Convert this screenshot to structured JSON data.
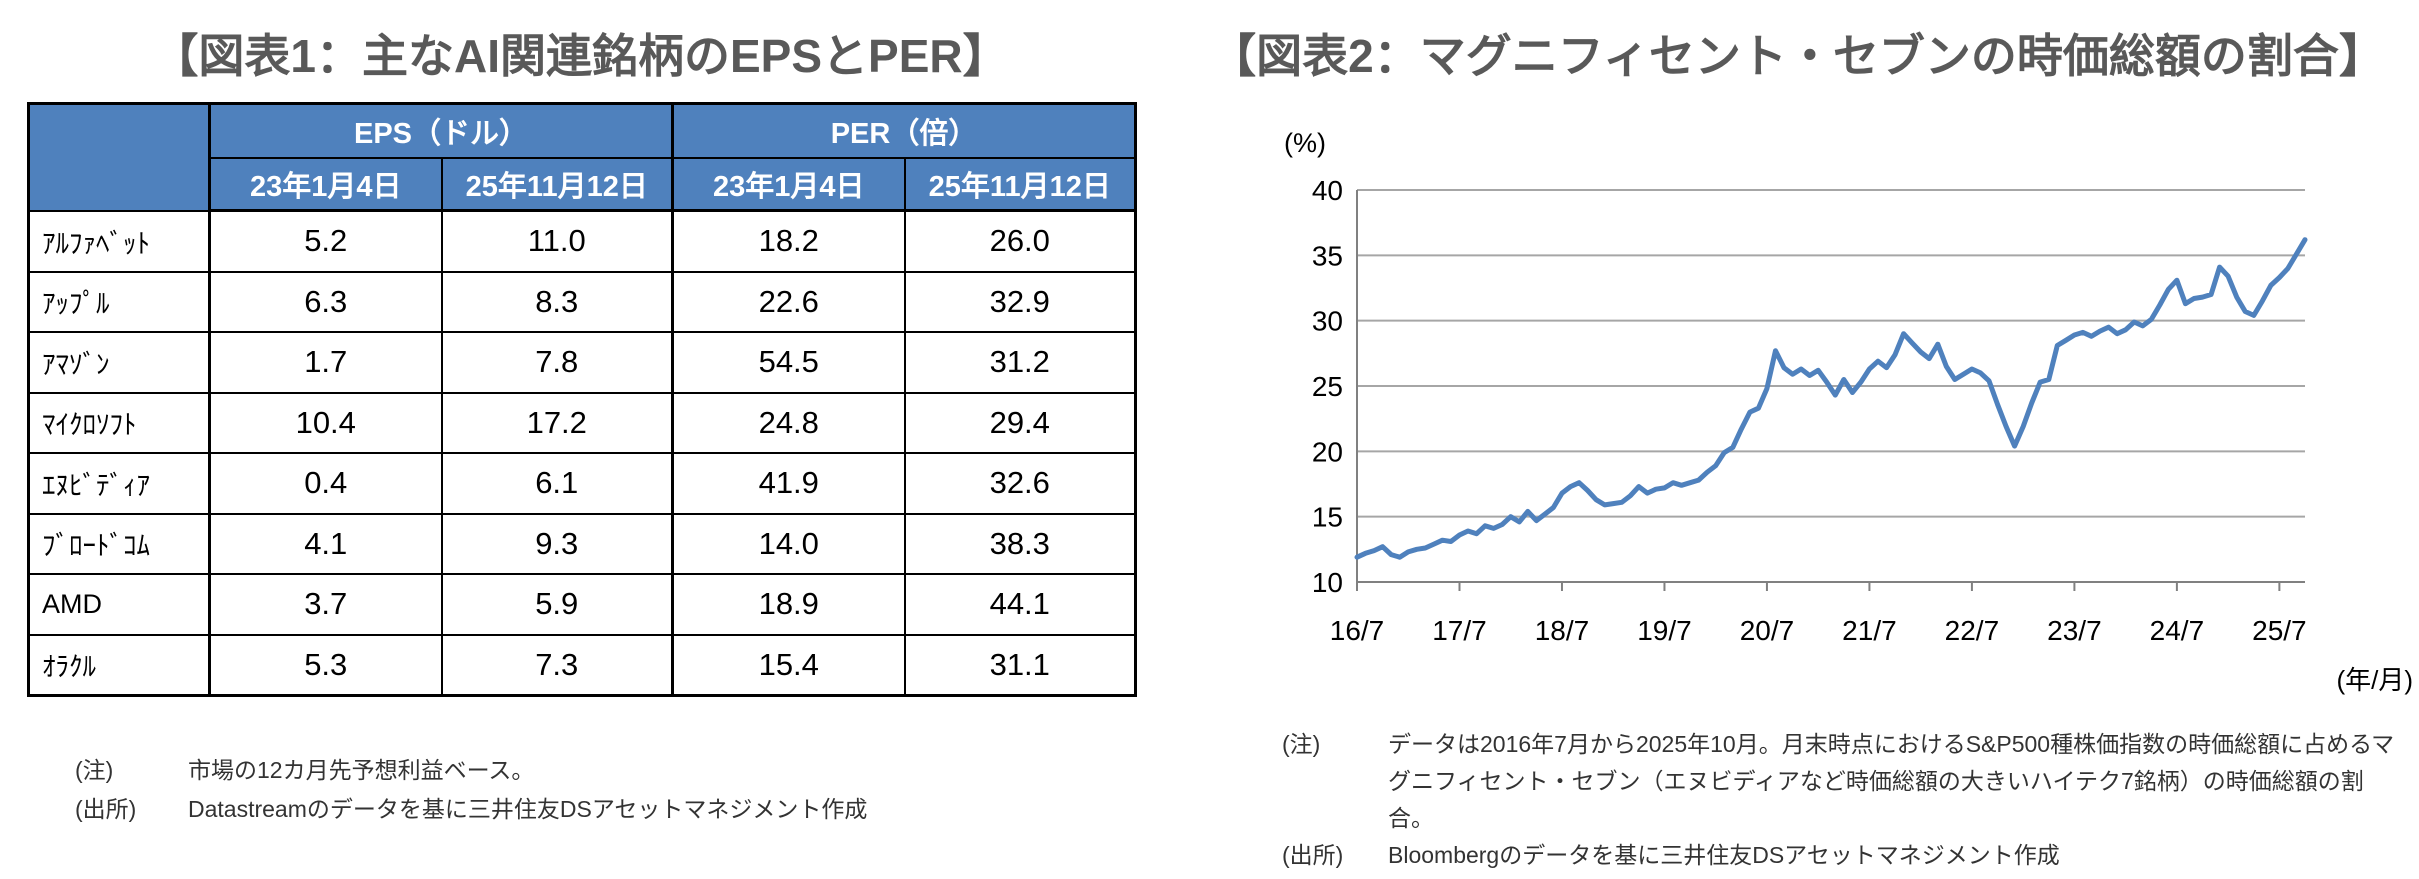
{
  "figure1": {
    "title": "【図表1：主なAI関連銘柄のEPSとPER】",
    "table": {
      "header_bg": "#4f81bd",
      "header_text_color": "#ffffff",
      "col_groups": [
        {
          "label": "EPS（ドル）",
          "sub": [
            "23年1月4日",
            "25年11月12日"
          ]
        },
        {
          "label": "PER（倍）",
          "sub": [
            "23年1月4日",
            "25年11月12日"
          ]
        }
      ],
      "rows": [
        {
          "name": "ｱﾙﾌｧﾍﾞｯﾄ",
          "eps": [
            "5.2",
            "11.0"
          ],
          "per": [
            "18.2",
            "26.0"
          ]
        },
        {
          "name": "ｱｯﾌﾟﾙ",
          "eps": [
            "6.3",
            "8.3"
          ],
          "per": [
            "22.6",
            "32.9"
          ]
        },
        {
          "name": "ｱﾏｿﾞﾝ",
          "eps": [
            "1.7",
            "7.8"
          ],
          "per": [
            "54.5",
            "31.2"
          ]
        },
        {
          "name": "ﾏｲｸﾛｿﾌﾄ",
          "eps": [
            "10.4",
            "17.2"
          ],
          "per": [
            "24.8",
            "29.4"
          ]
        },
        {
          "name": "ｴﾇﾋﾞﾃﾞｨｱ",
          "eps": [
            "0.4",
            "6.1"
          ],
          "per": [
            "41.9",
            "32.6"
          ]
        },
        {
          "name": "ﾌﾞﾛｰﾄﾞｺﾑ",
          "eps": [
            "4.1",
            "9.3"
          ],
          "per": [
            "14.0",
            "38.3"
          ]
        },
        {
          "name": "AMD",
          "eps": [
            "3.7",
            "5.9"
          ],
          "per": [
            "18.9",
            "44.1"
          ]
        },
        {
          "name": "ｵﾗｸﾙ",
          "eps": [
            "5.3",
            "7.3"
          ],
          "per": [
            "15.4",
            "31.1"
          ]
        }
      ]
    },
    "notes": [
      {
        "label": "(注)",
        "text": "市場の12カ月先予想利益ベース。"
      },
      {
        "label": "(出所)",
        "text": "Datastreamのデータを基に三井住友DSアセットマネジメント作成"
      }
    ]
  },
  "figure2": {
    "title": "【図表2：マグニフィセント・セブンの時価総額の割合】",
    "y_unit": "(%)",
    "x_unit": "(年/月)",
    "notes": [
      {
        "label": "(注)",
        "text": "データは2016年7月から2025年10月。月末時点におけるS&P500種株価指数の時価総額に占めるマグニフィセント・セブン（エヌビディアなど時価総額の大きいハイテク7銘柄）の時価総額の割合。"
      },
      {
        "label": "(出所)",
        "text": "Bloombergのデータを基に三井住友DSアセットマネジメント作成"
      }
    ]
  },
  "chart_data": {
    "type": "line",
    "title": "マグニフィセント・セブンの時価総額の割合",
    "ylabel": "(%)",
    "xlabel": "(年/月)",
    "ylim": [
      10,
      40
    ],
    "yticks": [
      10,
      15,
      20,
      25,
      30,
      35,
      40
    ],
    "grid": true,
    "legend": "none",
    "line_color": "#4f81bd",
    "grid_color": "#a6a6a6",
    "axis_color": "#808080",
    "x_start": "2016/07",
    "x_end": "2025/10",
    "x_frequency": "monthly",
    "xticks": [
      {
        "label": "16/7",
        "index": 0
      },
      {
        "label": "17/7",
        "index": 12
      },
      {
        "label": "18/7",
        "index": 24
      },
      {
        "label": "19/7",
        "index": 36
      },
      {
        "label": "20/7",
        "index": 48
      },
      {
        "label": "21/7",
        "index": 60
      },
      {
        "label": "22/7",
        "index": 72
      },
      {
        "label": "23/7",
        "index": 84
      },
      {
        "label": "24/7",
        "index": 96
      },
      {
        "label": "25/7",
        "index": 108
      }
    ],
    "values": [
      11.9,
      12.2,
      12.4,
      12.7,
      12.1,
      11.9,
      12.3,
      12.5,
      12.6,
      12.9,
      13.2,
      13.1,
      13.6,
      13.9,
      13.7,
      14.3,
      14.1,
      14.4,
      15.0,
      14.6,
      15.4,
      14.7,
      15.2,
      15.7,
      16.8,
      17.3,
      17.6,
      17.0,
      16.3,
      15.9,
      16.0,
      16.1,
      16.6,
      17.3,
      16.8,
      17.1,
      17.2,
      17.6,
      17.4,
      17.6,
      17.8,
      18.4,
      18.9,
      19.9,
      20.3,
      21.7,
      23.0,
      23.3,
      24.8,
      27.7,
      26.4,
      25.9,
      26.3,
      25.8,
      26.2,
      25.3,
      24.3,
      25.5,
      24.5,
      25.3,
      26.3,
      26.9,
      26.4,
      27.4,
      29.0,
      28.3,
      27.6,
      27.1,
      28.2,
      26.5,
      25.5,
      25.9,
      26.3,
      26.0,
      25.4,
      23.6,
      21.9,
      20.4,
      21.9,
      23.7,
      25.3,
      25.5,
      28.1,
      28.5,
      28.9,
      29.1,
      28.8,
      29.2,
      29.5,
      29.0,
      29.3,
      29.9,
      29.6,
      30.1,
      31.2,
      32.4,
      33.1,
      31.3,
      31.7,
      31.8,
      32.0,
      34.1,
      33.4,
      31.8,
      30.7,
      30.4,
      31.5,
      32.7,
      33.3,
      34.0,
      35.1,
      36.2
    ]
  }
}
